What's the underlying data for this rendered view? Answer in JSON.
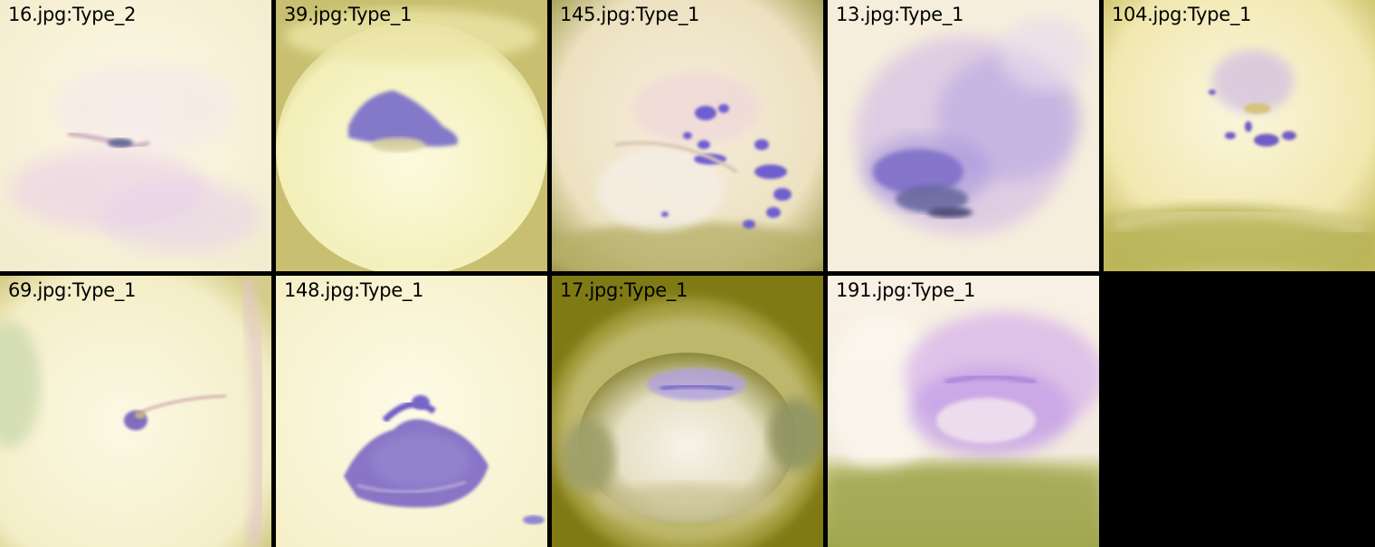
{
  "tiles": [
    {
      "label": "16.jpg:Type_2"
    },
    {
      "label": "39.jpg:Type_1"
    },
    {
      "label": "145.jpg:Type_1"
    },
    {
      "label": "13.jpg:Type_1"
    },
    {
      "label": "104.jpg:Type_1"
    },
    {
      "label": "69.jpg:Type_1"
    },
    {
      "label": "148.jpg:Type_1"
    },
    {
      "label": "17.jpg:Type_1"
    },
    {
      "label": "191.jpg:Type_1"
    }
  ],
  "colors": {
    "background": "#000000",
    "tissue": "#fcf8d8",
    "stain": "#8a78d8",
    "label_text": "#000000"
  }
}
